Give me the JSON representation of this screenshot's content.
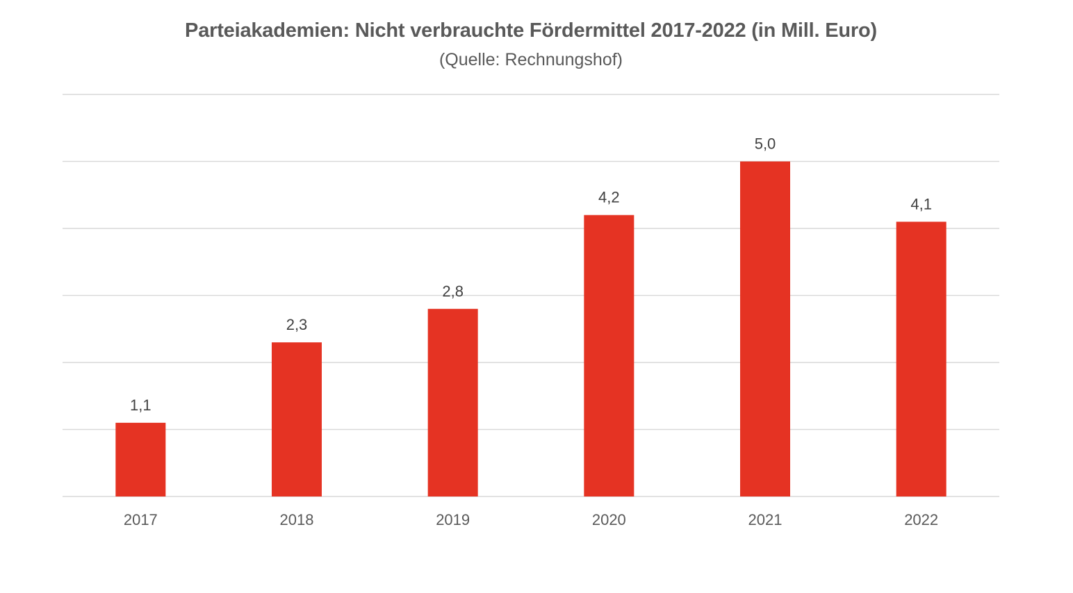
{
  "chart_data": {
    "type": "bar",
    "title": "Parteiakademien: Nicht verbrauchte Fördermittel 2017-2022 (in Mill. Euro)",
    "subtitle": "(Quelle: Rechnungshof)",
    "categories": [
      "2017",
      "2018",
      "2019",
      "2020",
      "2021",
      "2022"
    ],
    "values": [
      1.1,
      2.3,
      2.8,
      4.2,
      5.0,
      4.1
    ],
    "data_labels": [
      "1,1",
      "2,3",
      "2,8",
      "4,2",
      "5,0",
      "4,1"
    ],
    "xlabel": "",
    "ylabel": "",
    "ylim": [
      0,
      6
    ],
    "grid": true,
    "y_tick_labels_visible": false,
    "legend": "none",
    "colors": {
      "bar": "#E53323",
      "grid": "#D9D9D9",
      "text": "#595959"
    }
  }
}
